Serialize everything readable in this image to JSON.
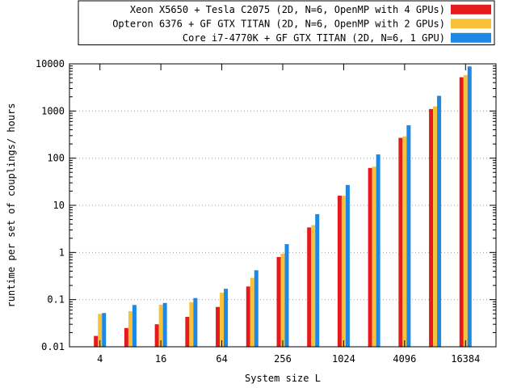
{
  "chart_data": {
    "type": "bar",
    "xlabel": "System size L",
    "ylabel": "runtime per set of couplings/ hours",
    "yscale": "log",
    "ylim": [
      0.01,
      10000
    ],
    "y_ticks": [
      "0.01",
      "0.1",
      "1",
      "10",
      "100",
      "1000",
      "10000"
    ],
    "x": [
      4,
      8,
      16,
      32,
      64,
      128,
      256,
      512,
      1024,
      2048,
      4096,
      8192,
      16384
    ],
    "x_tick_labels": [
      "4",
      "16",
      "64",
      "256",
      "1024",
      "4096",
      "16384"
    ],
    "x_tick_values": [
      4,
      16,
      64,
      256,
      1024,
      4096,
      16384
    ],
    "grid": true,
    "legend_position": "top-right",
    "series": [
      {
        "name": "Xeon X5650 + Tesla C2075 (2D, N=6, OpenMP with 4 GPUs)",
        "color": "#e41a1c",
        "values": [
          0.017,
          0.025,
          0.03,
          0.043,
          0.07,
          0.19,
          0.8,
          3.4,
          16,
          62,
          270,
          1100,
          5200
        ]
      },
      {
        "name": "Opteron 6376 + GF GTX TITAN (2D, N=6, OpenMP with 2 GPUs)",
        "color": "#f7c23a",
        "values": [
          0.05,
          0.057,
          0.078,
          0.088,
          0.14,
          0.29,
          0.95,
          3.8,
          16,
          66,
          290,
          1250,
          5800
        ]
      },
      {
        "name": "Core i7-4770K + GF GTX TITAN (2D, N=6, 1 GPU)",
        "color": "#1e88e5",
        "values": [
          0.052,
          0.077,
          0.085,
          0.108,
          0.17,
          0.42,
          1.5,
          6.5,
          27,
          120,
          500,
          2100,
          8800
        ]
      }
    ]
  }
}
